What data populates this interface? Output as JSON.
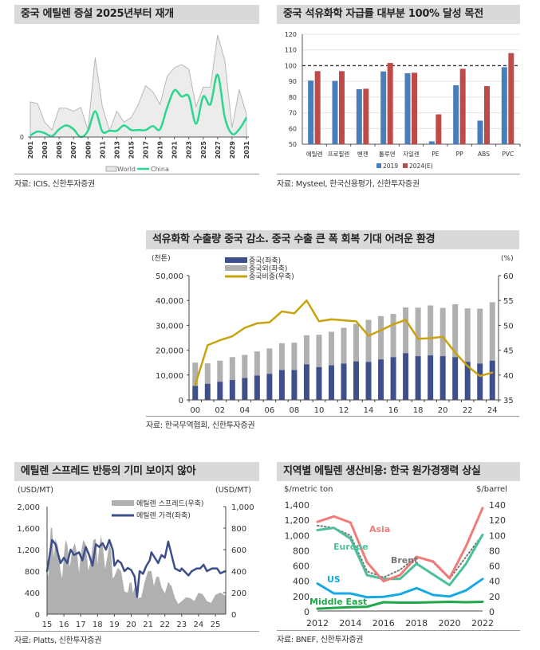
{
  "chart_data": [
    {
      "type": "area",
      "title": "중국 에틸렌 증설 2025년부터 재개",
      "source": "자료: ICIS, 신한투자증권",
      "x": [
        2001,
        2002,
        2003,
        2004,
        2005,
        2006,
        2007,
        2008,
        2009,
        2010,
        2011,
        2012,
        2013,
        2014,
        2015,
        2016,
        2017,
        2018,
        2019,
        2020,
        2021,
        2022,
        2023,
        2024,
        2025,
        2026,
        2027,
        2028,
        2029,
        2030,
        2031
      ],
      "x_tick_labels": [
        "2001",
        "2003",
        "2005",
        "2007",
        "2009",
        "2011",
        "2013",
        "2015",
        "2017",
        "2019",
        "2021",
        "2023",
        "2025",
        "2027",
        "2029",
        "2031"
      ],
      "y_tick_labels": [
        "0"
      ],
      "ylim": [
        0,
        135
      ],
      "series": [
        {
          "name": "World",
          "style": "area",
          "color": "#ececec",
          "values": [
            45,
            43,
            19,
            9,
            37,
            37,
            33,
            38,
            9,
            102,
            39,
            8,
            33,
            19,
            25,
            42,
            66,
            58,
            42,
            78,
            89,
            93,
            87,
            39,
            64,
            64,
            131,
            98,
            12,
            61,
            29
          ]
        },
        {
          "name": "China",
          "style": "line",
          "color": "#2bd68e",
          "values": [
            2,
            7,
            5,
            1,
            10,
            15,
            10,
            0,
            8,
            33,
            7,
            8,
            8,
            15,
            9,
            9,
            9,
            14,
            10,
            38,
            60,
            52,
            52,
            17,
            52,
            42,
            80,
            25,
            4,
            10,
            25
          ]
        }
      ],
      "legend": "bottom"
    },
    {
      "type": "bar",
      "title": "중국 석유화학 자급률 대부분 100% 달성 목전",
      "source": "자료: Mysteel, 한국신용평가, 신한투자증권",
      "categories": [
        "에틸렌",
        "프로필렌",
        "벤젠",
        "톨루엔",
        "자일렌",
        "PE",
        "PP",
        "ABS",
        "PVC"
      ],
      "series": [
        {
          "name": "2019",
          "color": "#4a7ebb",
          "values": [
            90.5,
            90.3,
            85,
            96.3,
            95.2,
            51.8,
            87.5,
            65,
            99
          ]
        },
        {
          "name": "2024(E)",
          "color": "#be4b48",
          "values": [
            96.5,
            96.5,
            85.3,
            101.7,
            95.5,
            69,
            98,
            87,
            108
          ]
        }
      ],
      "ylim": [
        50,
        120
      ],
      "y_ticks": [
        50,
        60,
        70,
        80,
        90,
        100,
        110,
        120
      ],
      "reference_line": 100,
      "grid": true,
      "legend": "bottom"
    },
    {
      "type": "bar",
      "title": "석유화학 수출량 중국 감소. 중국 수출 큰 폭 회복 기대 어려운 환경",
      "source": "자료: 한국무역협회, 신한투자증권",
      "ylabel_left": "(천톤)",
      "ylabel_right": "(%)",
      "categories": [
        "00",
        "01",
        "02",
        "03",
        "04",
        "05",
        "06",
        "07",
        "08",
        "09",
        "10",
        "11",
        "12",
        "13",
        "14",
        "15",
        "16",
        "17",
        "18",
        "19",
        "20",
        "21",
        "22",
        "23",
        "24"
      ],
      "x_tick_labels": [
        "00",
        "02",
        "04",
        "06",
        "08",
        "10",
        "12",
        "14",
        "16",
        "18",
        "20",
        "22",
        "24"
      ],
      "y_left_ticks": [
        "0",
        "10,000",
        "20,000",
        "30,000",
        "40,000",
        "50,000"
      ],
      "y_right_ticks": [
        "35",
        "40",
        "45",
        "50",
        "55",
        "60"
      ],
      "ylim_left": [
        0,
        50000
      ],
      "ylim_right": [
        35,
        60
      ],
      "series": [
        {
          "name": "중국(좌축)",
          "style": "stacked-bar",
          "color": "#3f4f8c",
          "values": [
            5600,
            6500,
            7300,
            8000,
            8800,
            9800,
            10500,
            12000,
            12000,
            14300,
            13200,
            13900,
            14600,
            15500,
            15300,
            16300,
            17200,
            18800,
            17600,
            17900,
            17600,
            17200,
            15300,
            14600,
            15800
          ]
        },
        {
          "name": "중국외(좌축)",
          "style": "stacked-bar",
          "color": "#b0b0b0",
          "values": [
            9400,
            8200,
            8500,
            9200,
            9300,
            9700,
            10200,
            10800,
            11000,
            11700,
            13000,
            13500,
            14400,
            15100,
            16900,
            17400,
            17400,
            18400,
            19500,
            20100,
            19400,
            21300,
            21500,
            22100,
            23500
          ]
        },
        {
          "name": "중국비중(우축)",
          "style": "line",
          "axis": "right",
          "color": "#c9a20c",
          "values": [
            38,
            46,
            47,
            47.8,
            49.5,
            50.4,
            50.6,
            52.8,
            52.4,
            55,
            50.8,
            51.2,
            51,
            50.8,
            47.9,
            49,
            50.2,
            51.1,
            47.3,
            47.4,
            47.7,
            44.5,
            41.8,
            39.8,
            40.5
          ]
        }
      ],
      "legend": "top-left"
    },
    {
      "type": "area",
      "title": "에틸렌 스프레드 반등의 기미 보이지 않아",
      "source": "자료: Platts, 신한투자증권",
      "ylabel_left": "(USD/MT)",
      "ylabel_right": "(USD/MT)",
      "x_tick_labels": [
        "15",
        "16",
        "17",
        "18",
        "19",
        "20",
        "21",
        "22",
        "23",
        "24",
        "25"
      ],
      "y_left_ticks": [
        "0",
        "400",
        "800",
        "1,200",
        "1,600",
        "2,000"
      ],
      "y_right_ticks": [
        "0",
        "200",
        "400",
        "600",
        "800",
        "1,000"
      ],
      "ylim_left": [
        0,
        2000
      ],
      "ylim_right": [
        0,
        1000
      ],
      "series": [
        {
          "name": "에틸렌 스프레드(우축)",
          "style": "area",
          "axis": "right",
          "color": "#b0b0b0",
          "x": [
            2015.0,
            2015.15,
            2015.3,
            2015.5,
            2015.8,
            2016.0,
            2016.2,
            2016.5,
            2016.8,
            2017.0,
            2017.3,
            2017.6,
            2017.9,
            2018.1,
            2018.3,
            2018.6,
            2018.8,
            2019.0,
            2019.4,
            2019.8,
            2020.0,
            2020.2,
            2020.4,
            2020.8,
            2021.2,
            2021.5,
            2021.8,
            2022.2,
            2022.6,
            2023.0,
            2023.5,
            2024.0,
            2024.5,
            2025.0,
            2025.6
          ],
          "values": [
            400,
            600,
            800,
            700,
            400,
            550,
            650,
            600,
            550,
            550,
            650,
            500,
            700,
            620,
            650,
            550,
            600,
            350,
            400,
            200,
            300,
            250,
            150,
            300,
            400,
            350,
            250,
            300,
            150,
            120,
            150,
            200,
            120,
            180,
            170
          ]
        },
        {
          "name": "에틸렌 가격(좌축)",
          "style": "line",
          "axis": "left",
          "color": "#3d4f8a",
          "x": [
            2015.0,
            2015.3,
            2015.5,
            2015.8,
            2016.0,
            2016.2,
            2016.4,
            2016.6,
            2016.9,
            2017.1,
            2017.3,
            2017.5,
            2017.7,
            2017.9,
            2018.1,
            2018.3,
            2018.5,
            2018.7,
            2018.9,
            2019.0,
            2019.2,
            2019.4,
            2019.6,
            2019.8,
            2020.0,
            2020.2,
            2020.35,
            2020.5,
            2020.7,
            2020.9,
            2021.1,
            2021.2,
            2021.4,
            2021.6,
            2021.8,
            2022.0,
            2022.2,
            2022.4,
            2022.6,
            2022.9,
            2023.0,
            2023.4,
            2023.6,
            2023.9,
            2024.1,
            2024.3,
            2024.5,
            2024.8,
            2025.1,
            2025.3,
            2025.6
          ],
          "values": [
            800,
            1380,
            1300,
            950,
            1050,
            950,
            1200,
            1100,
            1150,
            1000,
            1250,
            1100,
            900,
            1300,
            1250,
            1320,
            1200,
            1380,
            1200,
            900,
            1000,
            950,
            800,
            860,
            820,
            700,
            320,
            800,
            750,
            900,
            1000,
            1150,
            1050,
            950,
            1100,
            1050,
            1350,
            1100,
            850,
            800,
            850,
            720,
            800,
            850,
            850,
            920,
            800,
            850,
            850,
            760,
            800
          ]
        }
      ],
      "legend": "top-right"
    },
    {
      "type": "line",
      "title": "지역별 에틸렌 생산비용: 한국 원가경쟁력 상실",
      "source": "자료: BNEF, 신한투자증권",
      "ylabel_left": "$/metric ton",
      "ylabel_right": "$/barrel",
      "x": [
        2012,
        2013,
        2014,
        2015,
        2016,
        2017,
        2018,
        2019,
        2020,
        2021,
        2022
      ],
      "x_tick_labels": [
        "2012",
        "2014",
        "2016",
        "2018",
        "2020",
        "2022"
      ],
      "y_left_ticks": [
        "0",
        "200",
        "400",
        "600",
        "800",
        "1,000",
        "1,200",
        "1,400"
      ],
      "y_right_ticks": [
        "0",
        "20",
        "40",
        "60",
        "80",
        "100",
        "120",
        "140"
      ],
      "ylim_left": [
        0,
        1400
      ],
      "ylim_right": [
        0,
        140
      ],
      "series": [
        {
          "name": "Asia",
          "color": "#f07b78",
          "values": [
            1170,
            1240,
            1160,
            640,
            390,
            470,
            710,
            650,
            430,
            850,
            1350
          ]
        },
        {
          "name": "Europe",
          "color": "#4dbf9a",
          "values": [
            1060,
            1090,
            950,
            470,
            420,
            420,
            620,
            480,
            340,
            620,
            1000
          ]
        },
        {
          "name": "Brent",
          "axis": "right",
          "color": "#777777",
          "style": "dotted",
          "values": [
            112,
            109,
            99,
            52,
            44,
            54,
            71,
            64,
            42,
            71,
            100
          ]
        },
        {
          "name": "US",
          "color": "#16a9e6",
          "values": [
            360,
            230,
            230,
            180,
            185,
            220,
            300,
            210,
            190,
            270,
            420
          ]
        },
        {
          "name": "Middle East",
          "color": "#1fa84a",
          "values": [
            30,
            40,
            50,
            55,
            115,
            110,
            110,
            115,
            120,
            115,
            120
          ]
        }
      ],
      "legend": "inline"
    }
  ]
}
